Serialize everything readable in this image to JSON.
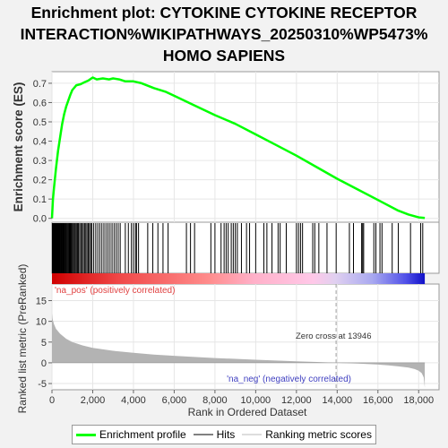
{
  "title_lines": [
    "Enrichment plot: CYTOKINE CYTOKINE RECEPTOR",
    "INTERACTION%WIKIPATHWAYS_20250310%WP5473%",
    "HOMO SAPIENS"
  ],
  "colors": {
    "es_line": "#00ff00",
    "hits": "#000000",
    "metric_fill": "#b3b3b3",
    "zero_cross_line": "#a0a0a0",
    "pos_label": "#e04040",
    "neg_label": "#4040c0",
    "background": "#f2f2f2",
    "panel": "#ffffff"
  },
  "chart_data": {
    "type": "line",
    "xlabel": "Rank in Ordered Dataset",
    "ylabel_top": "Enrichment score (ES)",
    "ylabel_bottom": "Ranked list metric (PreRanked)",
    "xlim": [
      0,
      19000
    ],
    "ylim_es": [
      -0.02,
      0.76
    ],
    "ylim_metric": [
      -6.5,
      19
    ],
    "x_ticks": [
      0,
      2000,
      4000,
      6000,
      8000,
      10000,
      12000,
      14000,
      16000,
      18000
    ],
    "x_tick_labels": [
      "0",
      "2,000",
      "4,000",
      "6,000",
      "8,000",
      "10,000",
      "12,000",
      "14,000",
      "16,000",
      "18,000"
    ],
    "es_ticks": [
      0.0,
      0.1,
      0.2,
      0.3,
      0.4,
      0.5,
      0.6,
      0.7
    ],
    "es_tick_labels": [
      "0.0",
      "0.1",
      "0.2",
      "0.3",
      "0.4",
      "0.5",
      "0.6",
      "0.7"
    ],
    "metric_ticks": [
      -5,
      0,
      5,
      10,
      15
    ],
    "metric_tick_labels": [
      "-5",
      "0",
      "5",
      "10",
      "15"
    ],
    "total_ranks": 18300,
    "zero_cross": 13946,
    "zero_cross_label": "Zero cross at 13946",
    "pos_label": "'na_pos' (positively correlated)",
    "neg_label": "'na_neg' (negatively correlated)",
    "series": [
      {
        "name": "Enrichment profile",
        "x": [
          0,
          50,
          100,
          200,
          300,
          400,
          500,
          600,
          700,
          800,
          900,
          1000,
          1200,
          1400,
          1600,
          1800,
          2000,
          2200,
          2500,
          2800,
          3000,
          3300,
          3600,
          4000,
          4400,
          5000,
          5600,
          6000,
          7000,
          8000,
          9000,
          10000,
          11000,
          12000,
          13000,
          14000,
          15000,
          16000,
          17000,
          17500,
          18000,
          18300
        ],
        "y": [
          0.0,
          0.1,
          0.16,
          0.26,
          0.35,
          0.42,
          0.49,
          0.54,
          0.58,
          0.61,
          0.64,
          0.665,
          0.69,
          0.695,
          0.705,
          0.715,
          0.73,
          0.72,
          0.725,
          0.72,
          0.725,
          0.72,
          0.71,
          0.71,
          0.7,
          0.675,
          0.655,
          0.635,
          0.585,
          0.535,
          0.49,
          0.435,
          0.38,
          0.325,
          0.265,
          0.205,
          0.15,
          0.095,
          0.04,
          0.02,
          0.005,
          0.002
        ]
      },
      {
        "name": "Ranking metric scores",
        "x": [
          0,
          30,
          100,
          200,
          400,
          700,
          1000,
          1500,
          2000,
          3000,
          4000,
          5000,
          6000,
          7000,
          8000,
          9000,
          10000,
          11000,
          12000,
          13000,
          13946,
          15000,
          16000,
          16500,
          17000,
          17500,
          17800,
          18000,
          18150,
          18250,
          18300
        ],
        "y": [
          12.0,
          10.5,
          9.3,
          8.2,
          7.0,
          5.8,
          5.0,
          4.2,
          3.6,
          2.9,
          2.4,
          2.0,
          1.7,
          1.4,
          1.15,
          0.95,
          0.75,
          0.55,
          0.38,
          0.2,
          0.0,
          -0.2,
          -0.42,
          -0.6,
          -0.85,
          -1.15,
          -1.5,
          -1.9,
          -2.5,
          -3.5,
          -6.0
        ]
      }
    ],
    "hits": [
      20,
      40,
      60,
      80,
      100,
      120,
      140,
      160,
      180,
      200,
      220,
      240,
      260,
      280,
      300,
      330,
      360,
      390,
      420,
      450,
      480,
      510,
      540,
      570,
      600,
      640,
      680,
      720,
      760,
      800,
      840,
      880,
      920,
      960,
      1000,
      1050,
      1100,
      1150,
      1200,
      1250,
      1300,
      1360,
      1420,
      1480,
      1540,
      1600,
      1660,
      1720,
      1780,
      1840,
      1900,
      1960,
      2050,
      2150,
      2250,
      2350,
      2450,
      2550,
      2650,
      2750,
      2850,
      2950,
      3050,
      3150,
      3250,
      3350,
      3600,
      3750,
      3900,
      4000,
      4100,
      4150,
      4250,
      4700,
      4950,
      5200,
      5450,
      5700,
      6600,
      6800,
      7000,
      7800,
      8000,
      8300,
      8450,
      8550,
      8650,
      8800,
      8900,
      9000,
      9100,
      9300,
      9550,
      9700,
      10000,
      10400,
      10550,
      10800,
      11100,
      11200,
      11500,
      12000,
      12100,
      12200,
      12300,
      12800,
      12900,
      13100,
      13500,
      13950,
      14600,
      14800,
      15200,
      15250,
      15300,
      15800,
      15900,
      16100,
      16200,
      16700,
      17000,
      17600,
      18100,
      18200
    ],
    "legend": [
      "Enrichment profile",
      "Hits",
      "Ranking metric scores"
    ]
  }
}
